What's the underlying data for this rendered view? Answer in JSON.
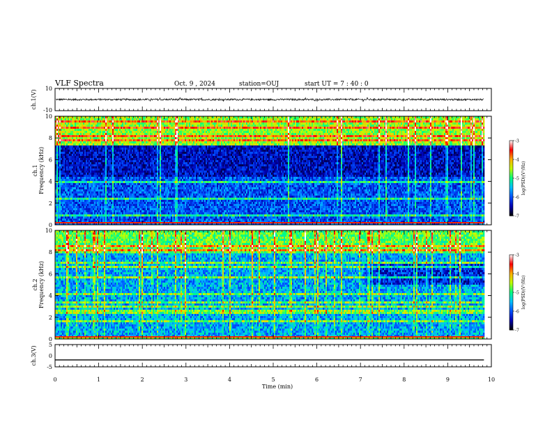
{
  "header": {
    "title": "VLF Spectra",
    "date": "Oct. 9  , 2024",
    "station": "station=OUJ",
    "start": "start  UT =   7 : 40 : 0"
  },
  "chart_data": [
    {
      "type": "line",
      "panel": "ch1-waveform",
      "ylabel": "ch.1(V)",
      "ylim": [
        -10,
        10
      ],
      "yticks": [
        "10",
        "-10"
      ],
      "xlim": [
        0,
        10
      ],
      "note_level_V": 0
    },
    {
      "type": "heatmap",
      "panel": "ch1-spectrogram",
      "ylabel": "Frequency (kHz)",
      "ylabel2": "ch.1",
      "ylim": [
        0,
        10
      ],
      "yticks": [
        "0",
        "2",
        "4",
        "6",
        "8",
        "10"
      ],
      "xlim": [
        0,
        10
      ],
      "data_end_min": 9.83,
      "colorbar": {
        "label": "log(PSD)(V²/Hz)",
        "min": -7,
        "max": -3,
        "ticks": [
          "-3",
          "-4",
          "-5",
          "-6",
          "-7"
        ],
        "colors": [
          "#000000",
          "#0000b0",
          "#0050ff",
          "#00c0ff",
          "#00ff80",
          "#c0ff00",
          "#ffb000",
          "#ff0000",
          "#ffffff"
        ]
      }
    },
    {
      "type": "heatmap",
      "panel": "ch2-spectrogram",
      "ylabel": "Frequency (kHz)",
      "ylabel2": "ch.2",
      "ylim": [
        0,
        10
      ],
      "yticks": [
        "0",
        "2",
        "4",
        "6",
        "8",
        "10"
      ],
      "xlim": [
        0,
        10
      ],
      "data_end_min": 9.83,
      "colorbar": {
        "label": "log(PSD)(V²/Hz)",
        "min": -7,
        "max": -3,
        "ticks": [
          "-3",
          "-4",
          "-5",
          "-6",
          "-7"
        ],
        "colors": [
          "#000000",
          "#0000b0",
          "#0050ff",
          "#00c0ff",
          "#00ff80",
          "#c0ff00",
          "#ffb000",
          "#ff0000",
          "#ffffff"
        ]
      }
    },
    {
      "type": "line",
      "panel": "ch3-waveform",
      "ylabel": "ch.3(V)",
      "ylim": [
        -5,
        5
      ],
      "yticks": [
        "5",
        "0",
        "-5"
      ],
      "xlim": [
        0,
        10
      ],
      "xlabel": "Time (min)",
      "xticks": [
        "0",
        "1",
        "2",
        "3",
        "4",
        "5",
        "6",
        "7",
        "8",
        "9",
        "10"
      ],
      "level_V": -1.9
    }
  ]
}
